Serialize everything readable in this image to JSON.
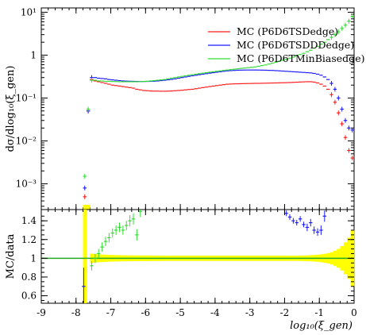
{
  "colors": {
    "red": "#ff1a1a",
    "blue": "#1a1aff",
    "green": "#33dd33",
    "band": "#ffff00",
    "ratio_line": "#22aa22",
    "axis": "#000000"
  },
  "labels": {
    "top_ylabel": "dσ/dlog₁₀(ξ_gen)",
    "bottom_ylabel": "MC/data",
    "xlabel": "log₁₀(ξ_gen)"
  },
  "chart_data": [
    {
      "type": "scatter",
      "panel": "main",
      "ylog": true,
      "xlim": [
        -9,
        0
      ],
      "ylim_exp": [
        -3.6,
        1.1
      ],
      "y_ticks": [
        {
          "v": 10,
          "label": "10¹"
        },
        {
          "v": 1,
          "label": "1"
        },
        {
          "v": 0.1,
          "label": "10⁻¹"
        },
        {
          "v": 0.01,
          "label": "10⁻²"
        },
        {
          "v": 0.001,
          "label": "10⁻³"
        }
      ],
      "series": [
        {
          "name": "MC (P6D6TSDedge)",
          "color_key": "red",
          "x": [
            -7.75,
            -7.65,
            -7.55,
            -7.45,
            -7.35,
            -7.25,
            -7.15,
            -7.05,
            -6.95,
            -6.85,
            -6.75,
            -6.65,
            -6.55,
            -6.45,
            -6.35,
            -6.25,
            -6.15,
            -6.05,
            -5.95,
            -5.85,
            -5.75,
            -5.65,
            -5.55,
            -5.45,
            -5.35,
            -5.25,
            -5.15,
            -5.05,
            -4.95,
            -4.85,
            -4.75,
            -4.65,
            -4.55,
            -4.45,
            -4.35,
            -4.25,
            -4.15,
            -4.05,
            -3.95,
            -3.85,
            -3.75,
            -3.65,
            -3.55,
            -3.45,
            -3.35,
            -3.25,
            -3.15,
            -3.05,
            -2.95,
            -2.85,
            -2.75,
            -2.65,
            -2.55,
            -2.45,
            -2.35,
            -2.25,
            -2.15,
            -2.05,
            -1.95,
            -1.85,
            -1.75,
            -1.65,
            -1.55,
            -1.45,
            -1.35,
            -1.25,
            -1.15,
            -1.05,
            -0.95,
            -0.85,
            -0.75,
            -0.65,
            -0.55,
            -0.45,
            -0.35,
            -0.25,
            -0.15,
            -0.05
          ],
          "y": [
            0.0005,
            0.05,
            0.27,
            0.25,
            0.24,
            0.23,
            0.22,
            0.21,
            0.2,
            0.195,
            0.19,
            0.185,
            0.18,
            0.175,
            0.17,
            0.16,
            0.155,
            0.15,
            0.148,
            0.146,
            0.145,
            0.145,
            0.144,
            0.144,
            0.145,
            0.146,
            0.148,
            0.15,
            0.152,
            0.155,
            0.158,
            0.16,
            0.165,
            0.17,
            0.175,
            0.18,
            0.185,
            0.19,
            0.195,
            0.2,
            0.205,
            0.21,
            0.212,
            0.214,
            0.215,
            0.216,
            0.217,
            0.218,
            0.219,
            0.22,
            0.22,
            0.221,
            0.222,
            0.223,
            0.224,
            0.225,
            0.226,
            0.227,
            0.228,
            0.23,
            0.232,
            0.234,
            0.236,
            0.238,
            0.24,
            0.24,
            0.235,
            0.225,
            0.21,
            0.19,
            0.16,
            0.12,
            0.08,
            0.045,
            0.025,
            0.012,
            0.006,
            0.004
          ]
        },
        {
          "name": "MC (P6D6TSDDDedge)",
          "color_key": "blue",
          "x": [
            -7.75,
            -7.65,
            -7.55,
            -7.45,
            -7.35,
            -7.25,
            -7.15,
            -7.05,
            -6.95,
            -6.85,
            -6.75,
            -6.65,
            -6.55,
            -6.45,
            -6.35,
            -6.25,
            -6.15,
            -6.05,
            -5.95,
            -5.85,
            -5.75,
            -5.65,
            -5.55,
            -5.45,
            -5.35,
            -5.25,
            -5.15,
            -5.05,
            -4.95,
            -4.85,
            -4.75,
            -4.65,
            -4.55,
            -4.45,
            -4.35,
            -4.25,
            -4.15,
            -4.05,
            -3.95,
            -3.85,
            -3.75,
            -3.65,
            -3.55,
            -3.45,
            -3.35,
            -3.25,
            -3.15,
            -3.05,
            -2.95,
            -2.85,
            -2.75,
            -2.65,
            -2.55,
            -2.45,
            -2.35,
            -2.25,
            -2.15,
            -2.05,
            -1.95,
            -1.85,
            -1.75,
            -1.65,
            -1.55,
            -1.45,
            -1.35,
            -1.25,
            -1.15,
            -1.05,
            -0.95,
            -0.85,
            -0.75,
            -0.65,
            -0.55,
            -0.45,
            -0.35,
            -0.25,
            -0.15,
            -0.05
          ],
          "y": [
            0.0008,
            0.05,
            0.3,
            0.3,
            0.29,
            0.285,
            0.28,
            0.27,
            0.265,
            0.26,
            0.255,
            0.25,
            0.248,
            0.246,
            0.245,
            0.244,
            0.243,
            0.243,
            0.244,
            0.245,
            0.247,
            0.25,
            0.255,
            0.26,
            0.266,
            0.272,
            0.28,
            0.29,
            0.3,
            0.31,
            0.32,
            0.33,
            0.34,
            0.35,
            0.36,
            0.37,
            0.38,
            0.39,
            0.4,
            0.41,
            0.42,
            0.43,
            0.435,
            0.44,
            0.445,
            0.447,
            0.449,
            0.45,
            0.45,
            0.45,
            0.449,
            0.447,
            0.445,
            0.442,
            0.44,
            0.435,
            0.43,
            0.425,
            0.42,
            0.415,
            0.41,
            0.405,
            0.4,
            0.395,
            0.39,
            0.385,
            0.375,
            0.36,
            0.34,
            0.31,
            0.27,
            0.22,
            0.16,
            0.1,
            0.055,
            0.03,
            0.02,
            0.018
          ]
        },
        {
          "name": "MC (P6D6TMinBiasedge)",
          "color_key": "green",
          "x": [
            -7.75,
            -7.65,
            -7.55,
            -7.45,
            -7.35,
            -7.25,
            -7.15,
            -7.05,
            -6.95,
            -6.85,
            -6.75,
            -6.65,
            -6.55,
            -6.45,
            -6.35,
            -6.25,
            -6.15,
            -6.05,
            -5.95,
            -5.85,
            -5.75,
            -5.65,
            -5.55,
            -5.45,
            -5.35,
            -5.25,
            -5.15,
            -5.05,
            -4.95,
            -4.85,
            -4.75,
            -4.65,
            -4.55,
            -4.45,
            -4.35,
            -4.25,
            -4.15,
            -4.05,
            -3.95,
            -3.85,
            -3.75,
            -3.65,
            -3.55,
            -3.45,
            -3.35,
            -3.25,
            -3.15,
            -3.05,
            -2.95,
            -2.85,
            -2.75,
            -2.65,
            -2.55,
            -2.45,
            -2.35,
            -2.25,
            -2.15,
            -2.05,
            -1.95,
            -1.85,
            -1.75,
            -1.65,
            -1.55,
            -1.45,
            -1.35,
            -1.25,
            -1.15,
            -1.05,
            -0.95,
            -0.85,
            -0.75,
            -0.65,
            -0.55,
            -0.45,
            -0.35,
            -0.25,
            -0.15,
            -0.05
          ],
          "y": [
            0.0015,
            0.055,
            0.26,
            0.26,
            0.25,
            0.25,
            0.245,
            0.245,
            0.243,
            0.242,
            0.24,
            0.24,
            0.24,
            0.24,
            0.24,
            0.24,
            0.242,
            0.244,
            0.246,
            0.25,
            0.255,
            0.26,
            0.265,
            0.27,
            0.28,
            0.29,
            0.3,
            0.31,
            0.32,
            0.33,
            0.34,
            0.35,
            0.36,
            0.37,
            0.38,
            0.39,
            0.4,
            0.41,
            0.42,
            0.43,
            0.44,
            0.45,
            0.46,
            0.47,
            0.48,
            0.49,
            0.5,
            0.51,
            0.52,
            0.53,
            0.55,
            0.57,
            0.59,
            0.62,
            0.65,
            0.68,
            0.72,
            0.76,
            0.8,
            0.85,
            0.9,
            0.96,
            1.03,
            1.1,
            1.2,
            1.3,
            1.45,
            1.6,
            1.8,
            2.0,
            2.3,
            2.6,
            3.0,
            3.5,
            4.2,
            5.0,
            6.2,
            8.0
          ]
        }
      ],
      "legend": "top-right"
    },
    {
      "type": "scatter",
      "panel": "ratio",
      "xlim": [
        -9,
        0
      ],
      "ylim": [
        0.52,
        1.52
      ],
      "x_ticks": [
        -9,
        -8,
        -7,
        -6,
        -5,
        -4,
        -3,
        -2,
        -1,
        0
      ],
      "y_ticks": [
        0.6,
        0.8,
        1,
        1.2,
        1.4
      ],
      "band": {
        "x": [
          -7.75,
          -7.55,
          -7.45,
          -7.35,
          -7.25,
          -7.15,
          -7.05,
          -6.95,
          -6.85,
          -6.75,
          -6.65,
          -6.55,
          -6.45,
          -6.35,
          -6.25,
          -6.15,
          -6.05,
          -5.95,
          -5.85,
          -5.75,
          -5.65,
          -5.55,
          -5.45,
          -5.35,
          -5.25,
          -5.15,
          -5.05,
          -4.95,
          -4.85,
          -4.75,
          -4.65,
          -4.55,
          -4.45,
          -4.35,
          -4.25,
          -4.15,
          -4.05,
          -3.95,
          -3.85,
          -3.75,
          -3.65,
          -3.55,
          -3.45,
          -3.35,
          -3.25,
          -3.15,
          -3.05,
          -2.95,
          -2.85,
          -2.75,
          -2.65,
          -2.55,
          -2.45,
          -2.35,
          -2.25,
          -2.15,
          -2.05,
          -1.95,
          -1.85,
          -1.75,
          -1.65,
          -1.55,
          -1.45,
          -1.35,
          -1.25,
          -1.15,
          -1.05,
          -0.95,
          -0.85,
          -0.75,
          -0.65,
          -0.55,
          -0.45,
          -0.35,
          -0.25,
          -0.15,
          -0.05
        ],
        "half_width": [
          0.6,
          0.05,
          0.045,
          0.042,
          0.04,
          0.038,
          0.036,
          0.035,
          0.034,
          0.033,
          0.032,
          0.032,
          0.031,
          0.031,
          0.03,
          0.03,
          0.03,
          0.03,
          0.029,
          0.029,
          0.029,
          0.029,
          0.028,
          0.028,
          0.028,
          0.028,
          0.028,
          0.028,
          0.028,
          0.028,
          0.028,
          0.028,
          0.028,
          0.028,
          0.028,
          0.028,
          0.028,
          0.028,
          0.028,
          0.028,
          0.028,
          0.028,
          0.028,
          0.028,
          0.028,
          0.028,
          0.028,
          0.028,
          0.028,
          0.028,
          0.028,
          0.028,
          0.028,
          0.028,
          0.028,
          0.028,
          0.028,
          0.028,
          0.028,
          0.028,
          0.028,
          0.029,
          0.03,
          0.031,
          0.033,
          0.035,
          0.038,
          0.042,
          0.048,
          0.055,
          0.065,
          0.08,
          0.1,
          0.13,
          0.17,
          0.22,
          0.3
        ]
      },
      "series": [
        {
          "name": "MC (P6D6TSDedge)",
          "color_key": "red",
          "x": [],
          "y": []
        },
        {
          "name": "MC (P6D6TSDDDedge)",
          "color_key": "blue",
          "x": [
            -7.78,
            -1.95,
            -1.85,
            -1.75,
            -1.65,
            -1.55,
            -1.45,
            -1.35,
            -1.25,
            -1.15,
            -1.05,
            -0.95,
            -0.85
          ],
          "y": [
            0.7,
            1.48,
            1.44,
            1.4,
            1.38,
            1.42,
            1.36,
            1.33,
            1.38,
            1.3,
            1.28,
            1.3,
            1.45
          ],
          "err": [
            0.2,
            0.03,
            0.03,
            0.03,
            0.03,
            0.03,
            0.03,
            0.04,
            0.04,
            0.04,
            0.04,
            0.05,
            0.06
          ]
        },
        {
          "name": "MC (P6D6TMinBiasedge)",
          "color_key": "green",
          "x": [
            -7.55,
            -7.45,
            -7.35,
            -7.25,
            -7.15,
            -7.05,
            -6.95,
            -6.85,
            -6.75,
            -6.65,
            -6.55,
            -6.45,
            -6.35,
            -6.25,
            -6.15
          ],
          "y": [
            0.92,
            1.0,
            1.05,
            1.12,
            1.18,
            1.22,
            1.27,
            1.3,
            1.33,
            1.3,
            1.35,
            1.4,
            1.42,
            1.25,
            1.5
          ],
          "err": [
            0.05,
            0.05,
            0.05,
            0.05,
            0.05,
            0.05,
            0.05,
            0.05,
            0.05,
            0.05,
            0.05,
            0.06,
            0.06,
            0.06,
            0.06
          ]
        }
      ]
    }
  ]
}
